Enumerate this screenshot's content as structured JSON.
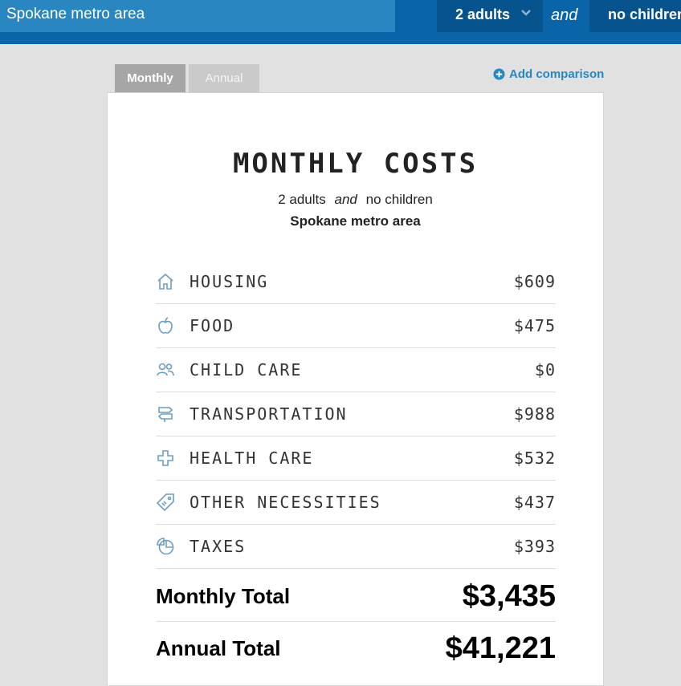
{
  "header": {
    "location": "Spokane metro area",
    "adults": "2 adults",
    "and_word": "and",
    "children": "no children"
  },
  "tabs": [
    {
      "label": "Monthly",
      "active": true
    },
    {
      "label": "Annual",
      "active": false
    }
  ],
  "add_comparison": "Add comparison",
  "card": {
    "title": "MONTHLY COSTS",
    "subtitle_adults": "2 adults",
    "subtitle_and": "and",
    "subtitle_children": "no children",
    "place": "Spokane metro area"
  },
  "costs": [
    {
      "label": "HOUSING",
      "amount": "$609",
      "icon": "house-icon"
    },
    {
      "label": "FOOD",
      "amount": "$475",
      "icon": "apple-icon"
    },
    {
      "label": "CHILD CARE",
      "amount": "$0",
      "icon": "people-icon"
    },
    {
      "label": "TRANSPORTATION",
      "amount": "$988",
      "icon": "signpost-icon"
    },
    {
      "label": "HEALTH CARE",
      "amount": "$532",
      "icon": "medical-cross-icon"
    },
    {
      "label": "OTHER NECESSITIES",
      "amount": "$437",
      "icon": "tag-icon"
    },
    {
      "label": "TAXES",
      "amount": "$393",
      "icon": "pie-chart-icon"
    }
  ],
  "totals": {
    "monthly_label": "Monthly Total",
    "monthly_value": "$3,435",
    "annual_label": "Annual Total",
    "annual_value": "$41,221"
  },
  "colors": {
    "topbar": "#0a65a8",
    "location_field": "#2a86c0",
    "select": "#07538e",
    "accent": "#2a86c0",
    "icon": "#6b9ec2"
  }
}
